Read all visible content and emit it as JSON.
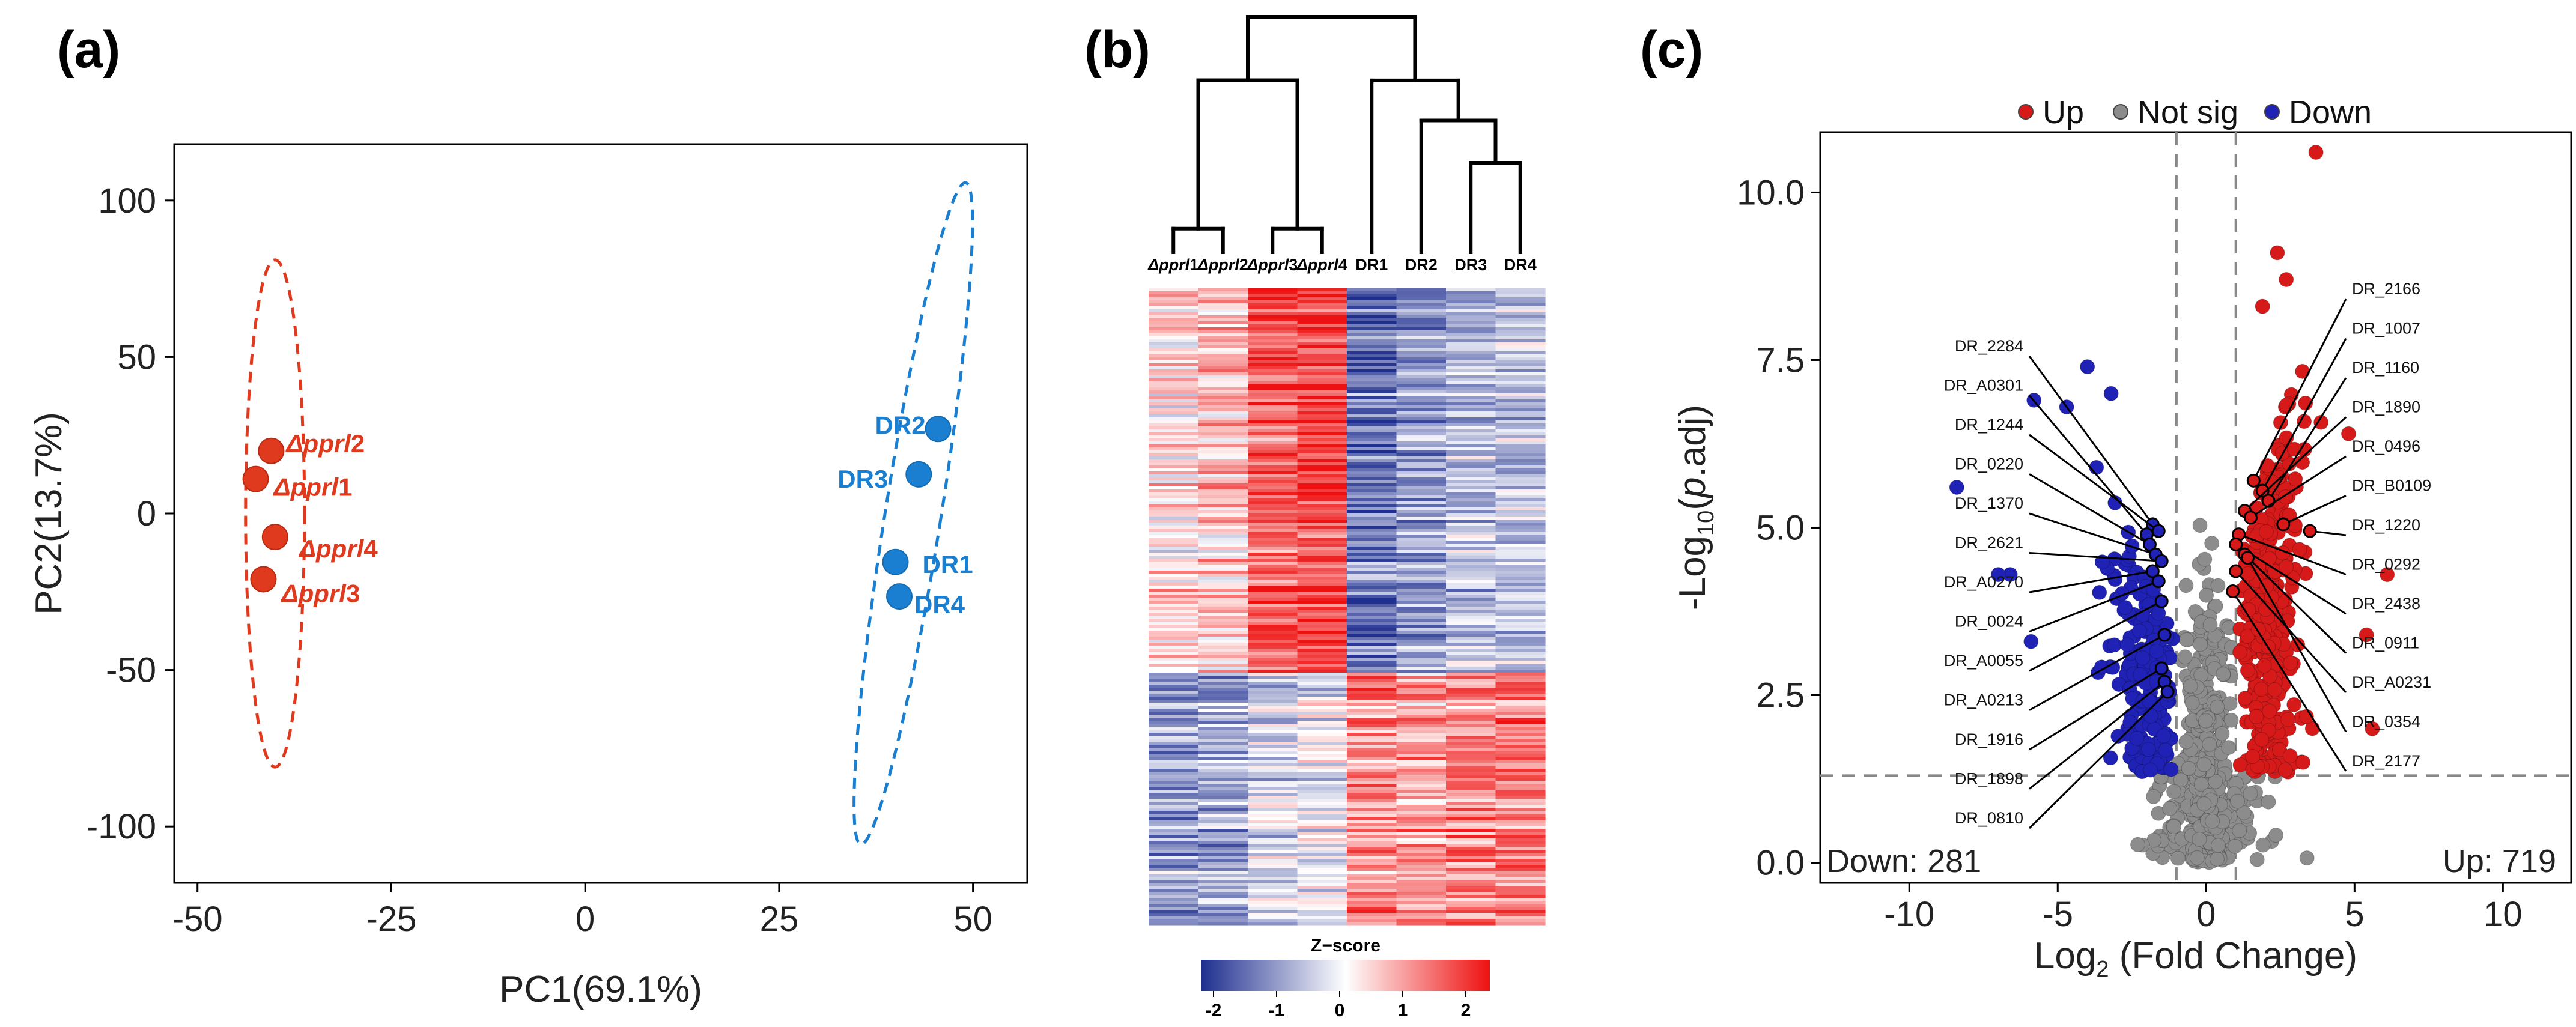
{
  "chart_data": [
    {
      "panel": "(a)",
      "type": "scatter",
      "xlabel": "PC1(69.1%)",
      "ylabel": "PC2(13.7%)",
      "xlim": [
        -53,
        57
      ],
      "ylim": [
        -118,
        118
      ],
      "xticks": [
        -50,
        -25,
        0,
        25,
        50
      ],
      "yticks": [
        -100,
        -50,
        0,
        50,
        100
      ],
      "series": [
        {
          "name": "Δpprl",
          "color": "#e03a1e",
          "points": [
            {
              "x": -40.5,
              "y": 20,
              "label": "Δpprl2",
              "label_base": "Δpprl",
              "label_num": "2"
            },
            {
              "x": -42.5,
              "y": 11,
              "label": "Δpprl1",
              "label_base": "Δpprl",
              "label_num": "1"
            },
            {
              "x": -40.0,
              "y": -7.5,
              "label": "Δpprl4",
              "label_base": "Δpprl",
              "label_num": "4"
            },
            {
              "x": -41.5,
              "y": -21,
              "label": "Δpprl3",
              "label_base": "Δpprl",
              "label_num": "3"
            }
          ],
          "ellipse": {
            "cx": -40,
            "cy": 0,
            "rx": 3.8,
            "ry": 81,
            "angle": 0
          }
        },
        {
          "name": "DR",
          "color": "#1a7fd0",
          "points": [
            {
              "x": 45.5,
              "y": 27,
              "label": "DR2"
            },
            {
              "x": 43.0,
              "y": 12.5,
              "label": "DR3"
            },
            {
              "x": 40.0,
              "y": -15.5,
              "label": "DR1"
            },
            {
              "x": 40.5,
              "y": -26.5,
              "label": "DR4"
            }
          ],
          "ellipse": {
            "cx": 42.3,
            "cy": 0,
            "rx": 3.6,
            "ry": 107,
            "angle": 9
          }
        }
      ]
    },
    {
      "panel": "(b)",
      "type": "heatmap",
      "columns": [
        "Δpprl1",
        "Δpprl2",
        "Δpprl3",
        "Δpprl4",
        "DR1",
        "DR2",
        "DR3",
        "DR4"
      ],
      "column_labels": [
        {
          "base": "Δpprl",
          "num": "1"
        },
        {
          "base": "Δpprl",
          "num": "2"
        },
        {
          "base": "Δpprl",
          "num": "3"
        },
        {
          "base": "Δpprl",
          "num": "4"
        },
        {
          "base": "DR1",
          "num": ""
        },
        {
          "base": "DR2",
          "num": ""
        },
        {
          "base": "DR3",
          "num": ""
        },
        {
          "base": "DR4",
          "num": ""
        }
      ],
      "cluster_mean_zscore": {
        "upper_cluster": [
          0.3,
          0.5,
          1.3,
          1.5,
          -1.3,
          -0.9,
          -0.6,
          -0.6
        ],
        "lower_cluster": [
          -0.9,
          -0.8,
          -0.4,
          -0.2,
          1.0,
          0.8,
          1.0,
          1.1
        ]
      },
      "dendrogram_merges": [
        {
          "left": 0,
          "right": 1,
          "height": 0.1
        },
        {
          "left": 2,
          "right": 3,
          "height": 0.1
        },
        {
          "left": 4,
          "right": 5,
          "height": 0.73
        },
        {
          "left": 6,
          "right": 7,
          "height": 0.38
        },
        {
          "left": 5,
          "right": 6,
          "height": 0.56
        },
        {
          "left": 4,
          "right": 5,
          "height": 0.85
        },
        {
          "left": 0,
          "right": 1,
          "height": 1.0
        }
      ],
      "colorbar": {
        "title": "Z−score",
        "range": [
          -2,
          2
        ],
        "ticks": [
          -2,
          -1,
          0,
          1,
          2
        ],
        "low_color": "#1f2f8f",
        "mid_color": "#ffffff",
        "high_color": "#ee1111"
      }
    },
    {
      "panel": "(c)",
      "type": "scatter",
      "xlabel_base": "Log",
      "xlabel_sub": "2",
      "xlabel_rest": " (Fold Change)",
      "ylabel_pre": "-Log",
      "ylabel_sub": "10",
      "ylabel_paren_open": "(",
      "ylabel_p": "p",
      "ylabel_rest": ".adj)",
      "xlim": [
        -13,
        12.3
      ],
      "ylim": [
        -0.3,
        10.9
      ],
      "xticks": [
        -10,
        -5,
        0,
        5,
        10
      ],
      "yticks": [
        0.0,
        2.5,
        5.0,
        7.5,
        10.0
      ],
      "ytick_labels": [
        "0.0",
        "2.5",
        "5.0",
        "7.5",
        "10.0"
      ],
      "thresholds": {
        "log2fc": [
          -1,
          1
        ],
        "neg_log10_padj": 1.3
      },
      "legend": [
        {
          "name": "Up",
          "color": "#d61a1a"
        },
        {
          "name": "Not sig",
          "color": "#8c8c8c"
        },
        {
          "name": "Down",
          "color": "#1f22b5"
        }
      ],
      "down_count": "Down: 281",
      "up_count": "Up: 719",
      "down_color": "#1f22b5",
      "up_color": "#d61a1a",
      "labeled_down": [
        {
          "gene": "DR_2284",
          "x": -1.8,
          "y": 5.05
        },
        {
          "gene": "DR_A0301",
          "x": -2.0,
          "y": 4.9
        },
        {
          "gene": "DR_1244",
          "x": -1.6,
          "y": 4.95
        },
        {
          "gene": "DR_0220",
          "x": -1.9,
          "y": 4.75
        },
        {
          "gene": "DR_1370",
          "x": -1.7,
          "y": 4.6
        },
        {
          "gene": "DR_2621",
          "x": -1.5,
          "y": 4.5
        },
        {
          "gene": "DR_A0270",
          "x": -1.8,
          "y": 4.35
        },
        {
          "gene": "DR_0024",
          "x": -1.6,
          "y": 4.2
        },
        {
          "gene": "DR_A0055",
          "x": -1.5,
          "y": 3.9
        },
        {
          "gene": "DR_A0213",
          "x": -1.4,
          "y": 3.4
        },
        {
          "gene": "DR_1916",
          "x": -1.5,
          "y": 2.9
        },
        {
          "gene": "DR_1898",
          "x": -1.4,
          "y": 2.7
        },
        {
          "gene": "DR_0810",
          "x": -1.3,
          "y": 2.55
        }
      ],
      "labeled_up": [
        {
          "gene": "DR_2166",
          "x": 1.6,
          "y": 5.7
        },
        {
          "gene": "DR_1007",
          "x": 1.9,
          "y": 5.55
        },
        {
          "gene": "DR_1160",
          "x": 2.1,
          "y": 5.4
        },
        {
          "gene": "DR_1890",
          "x": 1.3,
          "y": 5.25
        },
        {
          "gene": "DR_0496",
          "x": 1.5,
          "y": 5.15
        },
        {
          "gene": "DR_B0109",
          "x": 2.6,
          "y": 5.05
        },
        {
          "gene": "DR_1220",
          "x": 3.5,
          "y": 4.95
        },
        {
          "gene": "DR_0292",
          "x": 1.1,
          "y": 4.9
        },
        {
          "gene": "DR_2438",
          "x": 1.0,
          "y": 4.75
        },
        {
          "gene": "DR_0911",
          "x": 1.3,
          "y": 4.6
        },
        {
          "gene": "DR_A0231",
          "x": 1.0,
          "y": 4.35
        },
        {
          "gene": "DR_0354",
          "x": 1.4,
          "y": 4.55
        },
        {
          "gene": "DR_2177",
          "x": 0.9,
          "y": 4.05
        }
      ]
    }
  ]
}
